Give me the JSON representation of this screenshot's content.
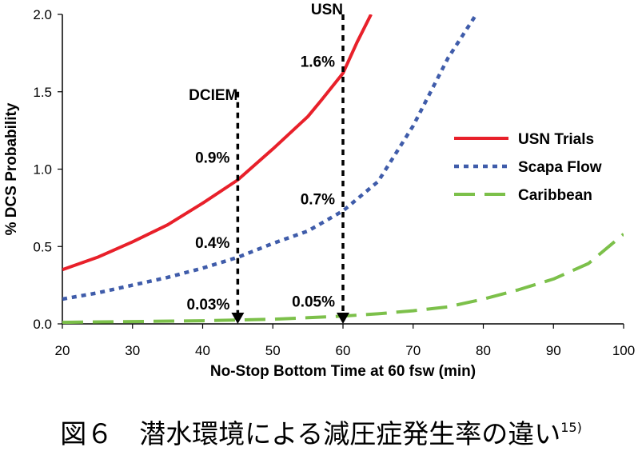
{
  "chart_data": {
    "type": "line",
    "xlabel": "No-Stop Bottom Time at 60 fsw (min)",
    "ylabel": "% DCS Probability",
    "xlim": [
      20,
      100
    ],
    "ylim": [
      0,
      2.0
    ],
    "xticks": [
      20,
      30,
      40,
      50,
      60,
      70,
      80,
      90,
      100
    ],
    "yticks": [
      0.0,
      0.5,
      1.0,
      1.5,
      2.0
    ],
    "xtick_labels": [
      "20",
      "30",
      "40",
      "50",
      "60",
      "70",
      "80",
      "90",
      "100"
    ],
    "ytick_labels": [
      "0.0",
      "0.5",
      "1.0",
      "1.5",
      "2.0"
    ],
    "grid": false,
    "legend_position": "right",
    "series": [
      {
        "name": "USN Trials",
        "color": "#e8202a",
        "style": "solid",
        "x": [
          20,
          25,
          30,
          35,
          40,
          45,
          50,
          55,
          57,
          60,
          62,
          64
        ],
        "y": [
          0.35,
          0.43,
          0.53,
          0.64,
          0.78,
          0.93,
          1.13,
          1.34,
          1.45,
          1.62,
          1.82,
          2.0
        ]
      },
      {
        "name": "Scapa Flow",
        "color": "#3f5caa",
        "style": "dotted",
        "x": [
          20,
          25,
          30,
          35,
          40,
          45,
          50,
          55,
          60,
          65,
          70,
          75,
          79
        ],
        "y": [
          0.16,
          0.2,
          0.25,
          0.3,
          0.36,
          0.43,
          0.52,
          0.6,
          0.73,
          0.92,
          1.28,
          1.72,
          2.0
        ]
      },
      {
        "name": "Caribbean",
        "color": "#7cc04a",
        "style": "dashed",
        "x": [
          20,
          30,
          40,
          45,
          50,
          55,
          60,
          65,
          70,
          75,
          80,
          85,
          90,
          95,
          100
        ],
        "y": [
          0.01,
          0.015,
          0.02,
          0.025,
          0.03,
          0.04,
          0.05,
          0.065,
          0.085,
          0.11,
          0.16,
          0.22,
          0.29,
          0.39,
          0.58
        ]
      }
    ],
    "markers": [
      {
        "label": "DCIEM",
        "x": 45,
        "from_y": 1.5,
        "to_y": 0.0
      },
      {
        "label": "USN",
        "x": 60,
        "from_y": 2.0,
        "to_y": 0.0
      }
    ],
    "annotations": [
      {
        "text": "1.6%",
        "x": 60,
        "y": 1.62
      },
      {
        "text": "0.9%",
        "x": 45,
        "y": 1.0
      },
      {
        "text": "0.7%",
        "x": 60,
        "y": 0.73
      },
      {
        "text": "0.4%",
        "x": 45,
        "y": 0.45
      },
      {
        "text": "0.03%",
        "x": 45,
        "y": 0.03
      },
      {
        "text": "0.05%",
        "x": 60,
        "y": 0.05
      }
    ]
  },
  "caption": {
    "text": "図６　潜水環境による減圧症発生率の違い",
    "ref": "15)"
  }
}
